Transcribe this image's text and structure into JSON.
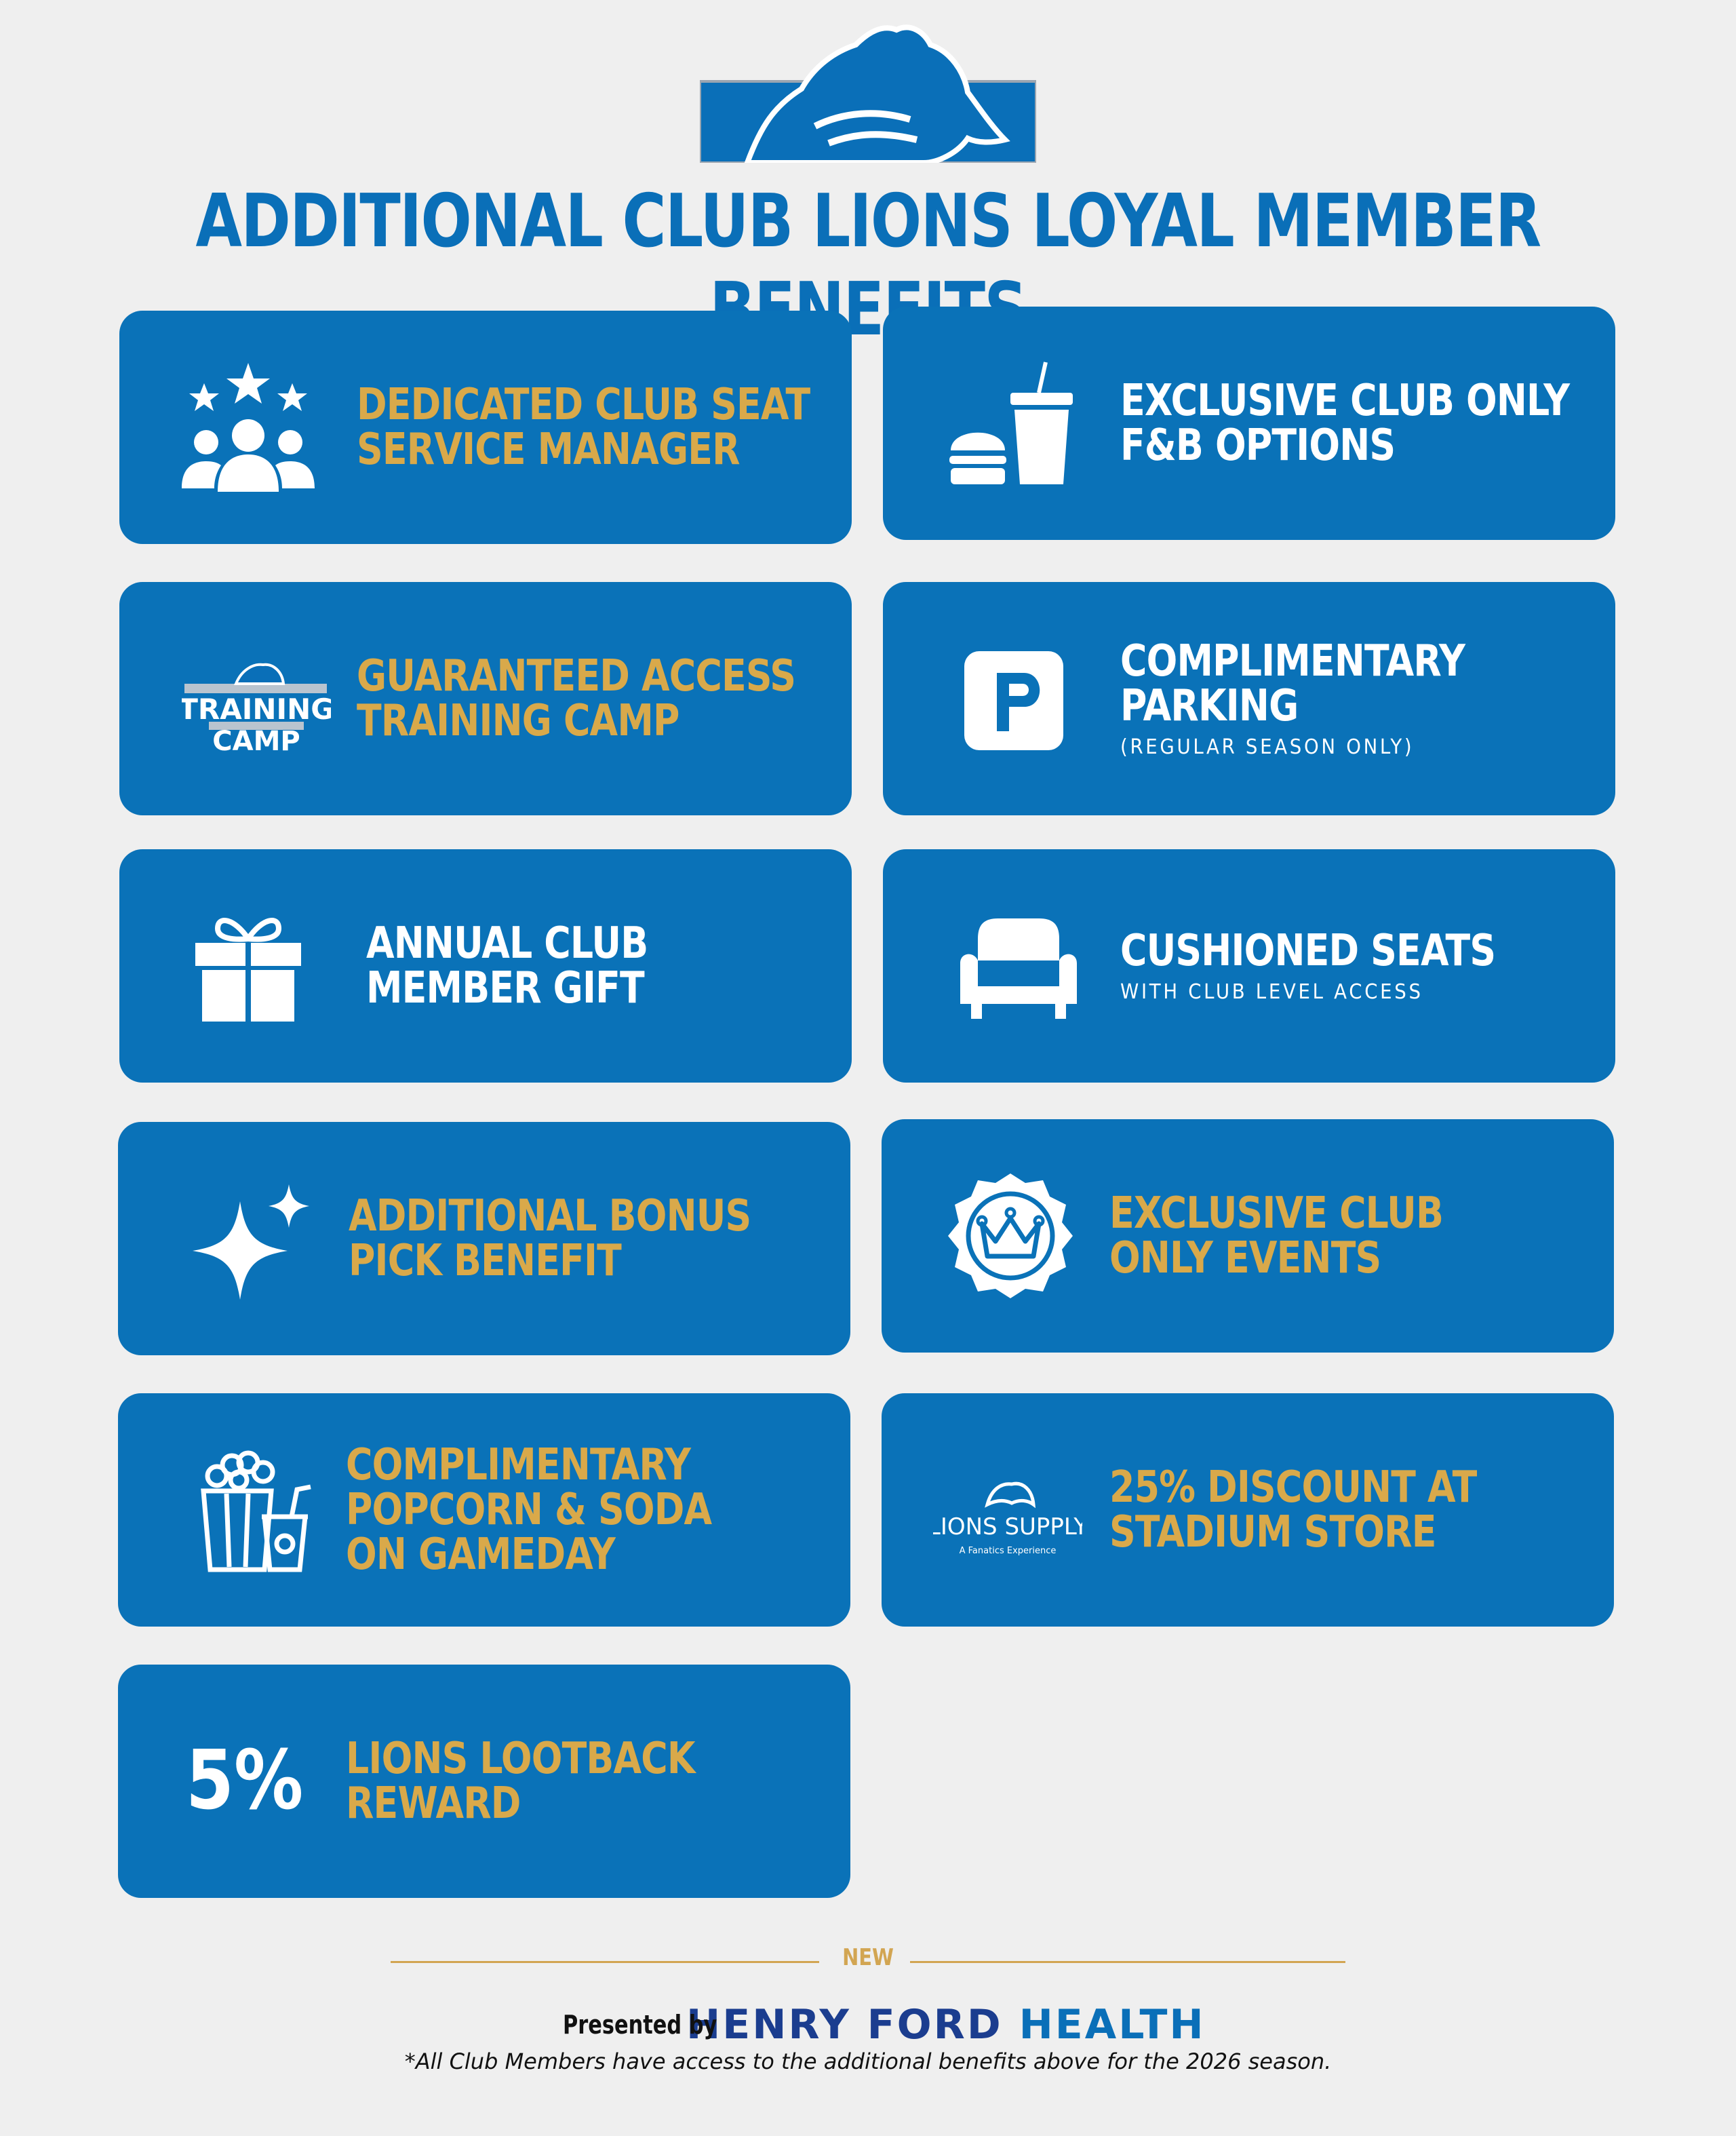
{
  "header": {
    "title": "ADDITIONAL CLUB LIONS LOYAL MEMBER BENEFITS",
    "logo": "detroit-lions-logo"
  },
  "benefits": [
    {
      "icon": "people-stars-icon",
      "title_lines": [
        "DEDICATED CLUB SEAT",
        "SERVICE MANAGER"
      ],
      "subtitle": "",
      "color": "#d9a94a"
    },
    {
      "icon": "burger-drink-icon",
      "title_lines": [
        "EXCLUSIVE CLUB ONLY",
        "F&B OPTIONS"
      ],
      "subtitle": "",
      "color": "#ffffff"
    },
    {
      "icon": "training-camp-logo",
      "icon_text": [
        "TRAINING",
        "CAMP"
      ],
      "title_lines": [
        "GUARANTEED ACCESS",
        "TRAINING CAMP"
      ],
      "subtitle": "",
      "color": "#d9a94a"
    },
    {
      "icon": "parking-icon",
      "title_lines": [
        "COMPLIMENTARY",
        "PARKING"
      ],
      "subtitle": "(REGULAR SEASON ONLY)",
      "color": "#ffffff"
    },
    {
      "icon": "gift-icon",
      "title_lines": [
        "ANNUAL CLUB",
        "MEMBER GIFT"
      ],
      "subtitle": "",
      "color": "#ffffff"
    },
    {
      "icon": "armchair-icon",
      "title_lines": [
        "CUSHIONED SEATS"
      ],
      "subtitle": "WITH CLUB LEVEL ACCESS",
      "color": "#ffffff"
    },
    {
      "icon": "sparkle-icon",
      "title_lines": [
        "ADDITIONAL BONUS",
        "PICK BENEFIT"
      ],
      "subtitle": "",
      "color": "#d9a94a"
    },
    {
      "icon": "crown-badge-icon",
      "title_lines": [
        "EXCLUSIVE CLUB",
        "ONLY EVENTS"
      ],
      "subtitle": "",
      "color": "#d9a94a"
    },
    {
      "icon": "popcorn-soda-icon",
      "title_lines": [
        "COMPLIMENTARY",
        "POPCORN & SODA",
        "ON GAMEDAY"
      ],
      "subtitle": "",
      "color": "#d9a94a"
    },
    {
      "icon": "lions-supply-logo",
      "icon_text": [
        "LIONS SUPPLY",
        "A Fanatics Experience"
      ],
      "title_lines": [
        "25% DISCOUNT AT",
        "STADIUM STORE"
      ],
      "subtitle": "",
      "color": "#d9a94a"
    },
    {
      "icon": "five-percent-icon",
      "icon_text": [
        "5%"
      ],
      "title_lines": [
        "LIONS LOOTBACK",
        "REWARD"
      ],
      "subtitle": "",
      "color": "#d9a94a"
    }
  ],
  "footer": {
    "new_label": "NEW",
    "presented_by": "Presented by",
    "sponsor": [
      "HENRY ",
      "FORD ",
      "HEALTH"
    ],
    "footnote": "*All Club Members have access to the additional benefits above for the 2026 season."
  },
  "colors": {
    "background": "#efefef",
    "card_blue": "#0a72b8",
    "title_blue": "#0a6fb8",
    "gold": "#d9a94a",
    "sponsor_navy": "#1b3d8f"
  }
}
